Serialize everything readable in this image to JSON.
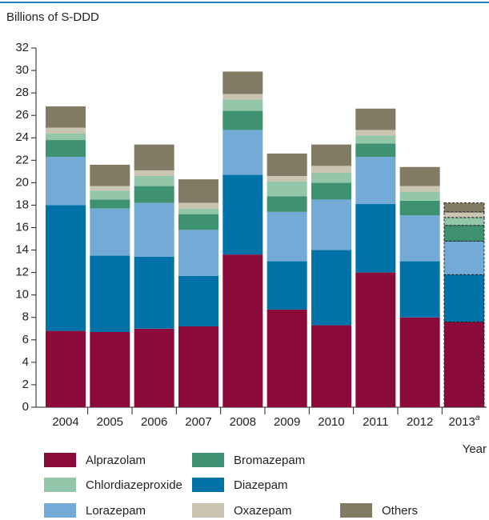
{
  "chart_data": {
    "type": "stacked_bar",
    "y_label": "Billions of S-DDD",
    "x_label": "Year",
    "categories": [
      "2004",
      "2005",
      "2006",
      "2007",
      "2008",
      "2009",
      "2010",
      "2011",
      "2012",
      "2013"
    ],
    "footnote": {
      "category": 9,
      "marker": "a"
    },
    "dashed": [
      false,
      false,
      false,
      false,
      false,
      false,
      false,
      false,
      false,
      true
    ],
    "ylim": [
      0,
      32
    ],
    "yticks": [
      0,
      2,
      4,
      6,
      8,
      10,
      12,
      14,
      16,
      18,
      20,
      22,
      24,
      26,
      28,
      30,
      32
    ],
    "series": [
      {
        "name": "Alprazolam",
        "color": "#8a0b3a",
        "values": [
          6.8,
          6.7,
          7.0,
          7.2,
          13.6,
          8.7,
          7.3,
          12.0,
          8.0,
          7.6
        ]
      },
      {
        "name": "Diazepam",
        "color": "#0072a8",
        "values": [
          11.2,
          6.8,
          6.4,
          4.5,
          7.1,
          4.3,
          6.7,
          6.1,
          5.0,
          4.2
        ]
      },
      {
        "name": "Lorazepam",
        "color": "#74aad6",
        "values": [
          4.3,
          4.2,
          4.8,
          4.1,
          4.0,
          4.4,
          4.5,
          4.2,
          4.1,
          3.0
        ]
      },
      {
        "name": "Bromazepam",
        "color": "#3f9271",
        "values": [
          1.5,
          0.8,
          1.5,
          1.4,
          1.7,
          1.4,
          1.5,
          1.2,
          1.3,
          1.4
        ]
      },
      {
        "name": "Chlordiazeproxide",
        "color": "#94c7a9",
        "values": [
          0.6,
          0.8,
          0.9,
          0.5,
          1.0,
          1.3,
          0.9,
          0.7,
          0.8,
          0.7
        ]
      },
      {
        "name": "Oxazepam",
        "color": "#c9c5b1",
        "values": [
          0.5,
          0.4,
          0.5,
          0.5,
          0.5,
          0.5,
          0.6,
          0.5,
          0.5,
          0.5
        ]
      },
      {
        "name": "Others",
        "color": "#817b63",
        "values": [
          1.9,
          1.9,
          2.3,
          2.1,
          2.0,
          2.0,
          1.9,
          1.9,
          1.7,
          0.8
        ]
      }
    ]
  }
}
